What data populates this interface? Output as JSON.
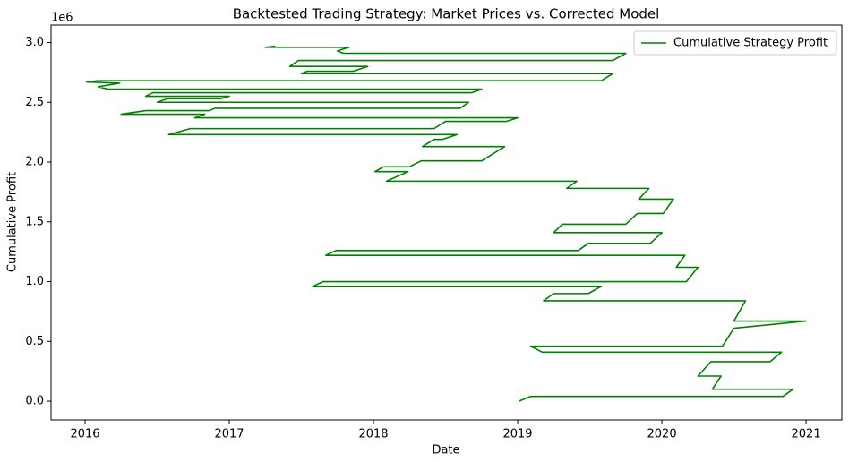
{
  "chart_data": {
    "type": "line",
    "title": "Backtested Trading Strategy: Market Prices vs. Corrected Model",
    "xlabel": "Date",
    "ylabel": "Cumulative Profit",
    "y_offset_label": "1e6",
    "xlim": [
      2015.764,
      2021.248
    ],
    "ylim": [
      -157000,
      3146000
    ],
    "xticks": [
      2016,
      2017,
      2018,
      2019,
      2020,
      2021
    ],
    "yticks": [
      {
        "value": 0,
        "label": "0.0"
      },
      {
        "value": 500000,
        "label": "0.5"
      },
      {
        "value": 1000000,
        "label": "1.0"
      },
      {
        "value": 1500000,
        "label": "1.5"
      },
      {
        "value": 2000000,
        "label": "2.0"
      },
      {
        "value": 2500000,
        "label": "2.5"
      },
      {
        "value": 3000000,
        "label": "3.0"
      }
    ],
    "grid": false,
    "legend": "upper right",
    "x": [
      2019.01,
      2019.09,
      2020.84,
      2020.91,
      2020.35,
      2020.41,
      2020.25,
      2020.34,
      2020.75,
      2020.83,
      2019.17,
      2019.09,
      2020.42,
      2020.5,
      2021.0,
      2020.5,
      2020.58,
      2019.18,
      2019.25,
      2019.49,
      2019.58,
      2017.58,
      2017.65,
      2020.17,
      2020.25,
      2020.1,
      2020.16,
      2017.67,
      2017.74,
      2019.42,
      2019.49,
      2019.92,
      2020.0,
      2019.25,
      2019.31,
      2019.75,
      2019.83,
      2020.01,
      2020.08,
      2019.84,
      2019.91,
      2019.34,
      2019.41,
      2018.09,
      2018.24,
      2018.01,
      2018.07,
      2018.25,
      2018.33,
      2018.75,
      2018.91,
      2018.34,
      2018.42,
      2018.48,
      2018.58,
      2016.58,
      2016.73,
      2018.42,
      2018.5,
      2018.92,
      2019.0,
      2016.76,
      2016.83,
      2016.25,
      2016.42,
      2016.86,
      2016.9,
      2018.6,
      2018.66,
      2016.5,
      2016.57,
      2016.94,
      2017.0,
      2016.42,
      2016.47,
      2018.68,
      2018.75,
      2016.16,
      2016.09,
      2016.24,
      2016.01,
      2016.09,
      2019.58,
      2019.66,
      2017.5,
      2017.54,
      2017.86,
      2017.96,
      2017.42,
      2017.48,
      2019.66,
      2019.75,
      2017.79,
      2017.75,
      2017.83,
      2017.25,
      2017.32
    ],
    "series": [
      {
        "name": "Cumulative Strategy Profit",
        "color": "#008000",
        "values": [
          0,
          40000,
          40000,
          100000,
          100000,
          210000,
          210000,
          330000,
          330000,
          410000,
          410000,
          460000,
          460000,
          610000,
          670000,
          670000,
          840000,
          840000,
          900000,
          900000,
          960000,
          960000,
          1000000,
          1000000,
          1120000,
          1120000,
          1220000,
          1220000,
          1260000,
          1260000,
          1320000,
          1320000,
          1410000,
          1410000,
          1480000,
          1480000,
          1570000,
          1570000,
          1690000,
          1690000,
          1780000,
          1780000,
          1840000,
          1840000,
          1920000,
          1920000,
          1960000,
          1960000,
          2010000,
          2010000,
          2130000,
          2130000,
          2190000,
          2190000,
          2230000,
          2230000,
          2280000,
          2280000,
          2340000,
          2340000,
          2370000,
          2370000,
          2400000,
          2400000,
          2430000,
          2430000,
          2450000,
          2450000,
          2500000,
          2500000,
          2530000,
          2530000,
          2550000,
          2550000,
          2580000,
          2580000,
          2610000,
          2610000,
          2630000,
          2660000,
          2670000,
          2680000,
          2680000,
          2740000,
          2740000,
          2760000,
          2760000,
          2800000,
          2800000,
          2850000,
          2850000,
          2910000,
          2910000,
          2930000,
          2960000,
          2960000,
          2970000
        ]
      }
    ]
  }
}
